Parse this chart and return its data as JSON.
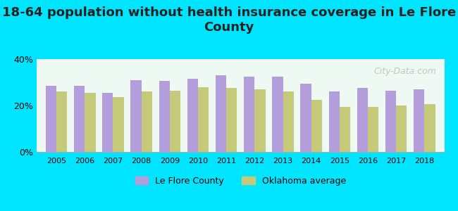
{
  "title": "18-64 population without health insurance coverage in Le Flore\nCounty",
  "years": [
    2005,
    2006,
    2007,
    2008,
    2009,
    2010,
    2011,
    2012,
    2013,
    2014,
    2015,
    2016,
    2017,
    2018
  ],
  "le_flore": [
    28.5,
    28.5,
    25.5,
    31.0,
    30.5,
    31.5,
    33.0,
    32.5,
    32.5,
    29.5,
    26.0,
    27.5,
    26.5,
    27.0
  ],
  "oklahoma": [
    26.0,
    25.5,
    23.5,
    26.0,
    26.5,
    28.0,
    27.5,
    27.0,
    26.0,
    22.5,
    19.5,
    19.5,
    20.0,
    20.5
  ],
  "le_flore_color": "#b39ddb",
  "oklahoma_color": "#c5c97a",
  "background_outer": "#00e5ff",
  "background_inner_top": "#e8f8f0",
  "background_inner_bottom": "#ffffff",
  "ylim": [
    0,
    40
  ],
  "yticks": [
    0,
    20,
    40
  ],
  "ytick_labels": [
    "0%",
    "20%",
    "40%"
  ],
  "bar_width": 0.38,
  "legend_le_flore": "Le Flore County",
  "legend_oklahoma": "Oklahoma average",
  "title_fontsize": 13,
  "watermark": "City-Data.com"
}
